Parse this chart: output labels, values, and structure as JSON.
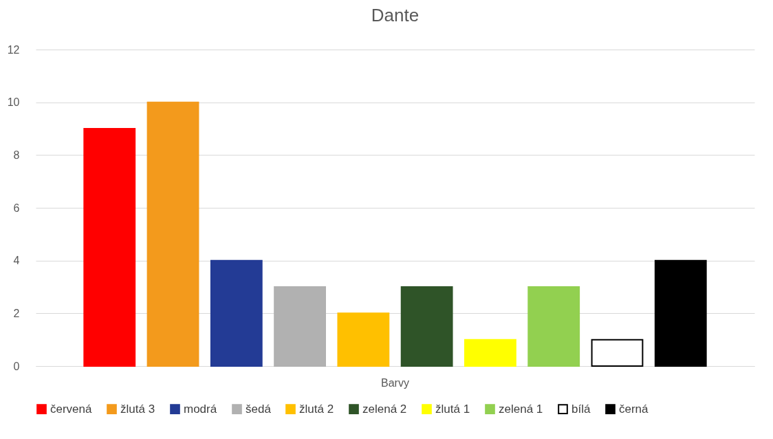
{
  "chart_data": {
    "type": "bar",
    "title": "Dante",
    "categories": [
      "Barvy"
    ],
    "series": [
      {
        "name": "červená",
        "color": "#ff0000",
        "values": [
          9
        ]
      },
      {
        "name": "žlutá 3",
        "color": "#f39a1c",
        "values": [
          10
        ]
      },
      {
        "name": "modrá",
        "color": "#233b95",
        "values": [
          4
        ]
      },
      {
        "name": "šedá",
        "color": "#b1b1b1",
        "values": [
          3
        ]
      },
      {
        "name": "žlutá 2",
        "color": "#ffc000",
        "values": [
          2
        ]
      },
      {
        "name": "zelená 2",
        "color": "#2f5428",
        "values": [
          3
        ]
      },
      {
        "name": "žlutá 1",
        "color": "#ffff00",
        "values": [
          1
        ]
      },
      {
        "name": "zelená 1",
        "color": "#92d050",
        "values": [
          3
        ]
      },
      {
        "name": "bílá",
        "color": "#ffffff",
        "values": [
          1
        ]
      },
      {
        "name": "černá",
        "color": "#000000",
        "values": [
          4
        ]
      }
    ],
    "ylim": [
      0,
      12
    ],
    "yticks": [
      0,
      2,
      4,
      6,
      8,
      10,
      12
    ],
    "grid": "y",
    "legend": "bottom"
  }
}
